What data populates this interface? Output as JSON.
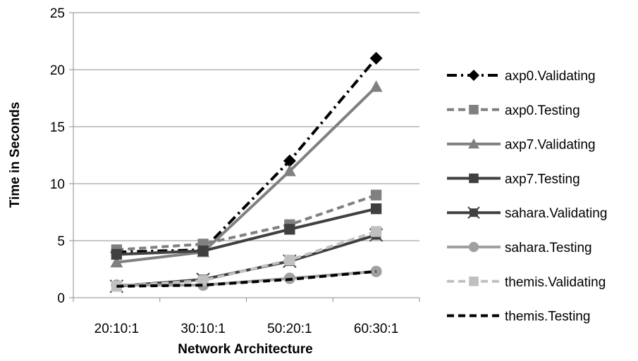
{
  "chart_data": {
    "type": "line",
    "title": "",
    "xlabel": "Network Architecture",
    "ylabel": "Time in Seconds",
    "categories": [
      "20:10:1",
      "30:10:1",
      "50:20:1",
      "60:30:1"
    ],
    "ylim": [
      0,
      25
    ],
    "yticks": [
      0,
      5,
      10,
      15,
      20,
      25
    ],
    "grid": "horizontal",
    "legend_position": "right",
    "series": [
      {
        "name": "axp0.Validating",
        "values": [
          4.0,
          4.2,
          12.0,
          21.0
        ],
        "color": "#000000",
        "dash": "dashdot",
        "marker": "diamond"
      },
      {
        "name": "axp0.Testing",
        "values": [
          4.2,
          4.7,
          6.4,
          9.0
        ],
        "color": "#808080",
        "dash": "dash",
        "marker": "square"
      },
      {
        "name": "axp7.Validating",
        "values": [
          3.1,
          4.0,
          11.1,
          18.5
        ],
        "color": "#808080",
        "dash": "solid",
        "marker": "triangle"
      },
      {
        "name": "axp7.Testing",
        "values": [
          3.8,
          4.1,
          6.0,
          7.8
        ],
        "color": "#404040",
        "dash": "solid",
        "marker": "square"
      },
      {
        "name": "sahara.Validating",
        "values": [
          1.0,
          1.6,
          3.2,
          5.5
        ],
        "color": "#404040",
        "dash": "solid",
        "marker": "star"
      },
      {
        "name": "sahara.Testing",
        "values": [
          1.1,
          1.1,
          1.7,
          2.3
        ],
        "color": "#a0a0a0",
        "dash": "solid",
        "marker": "circle"
      },
      {
        "name": "themis.Validating",
        "values": [
          1.0,
          1.5,
          3.3,
          5.8
        ],
        "color": "#c0c0c0",
        "dash": "dash",
        "marker": "square"
      },
      {
        "name": "themis.Testing",
        "values": [
          1.0,
          1.1,
          1.6,
          2.3
        ],
        "color": "#000000",
        "dash": "dash",
        "marker": "none"
      }
    ]
  }
}
